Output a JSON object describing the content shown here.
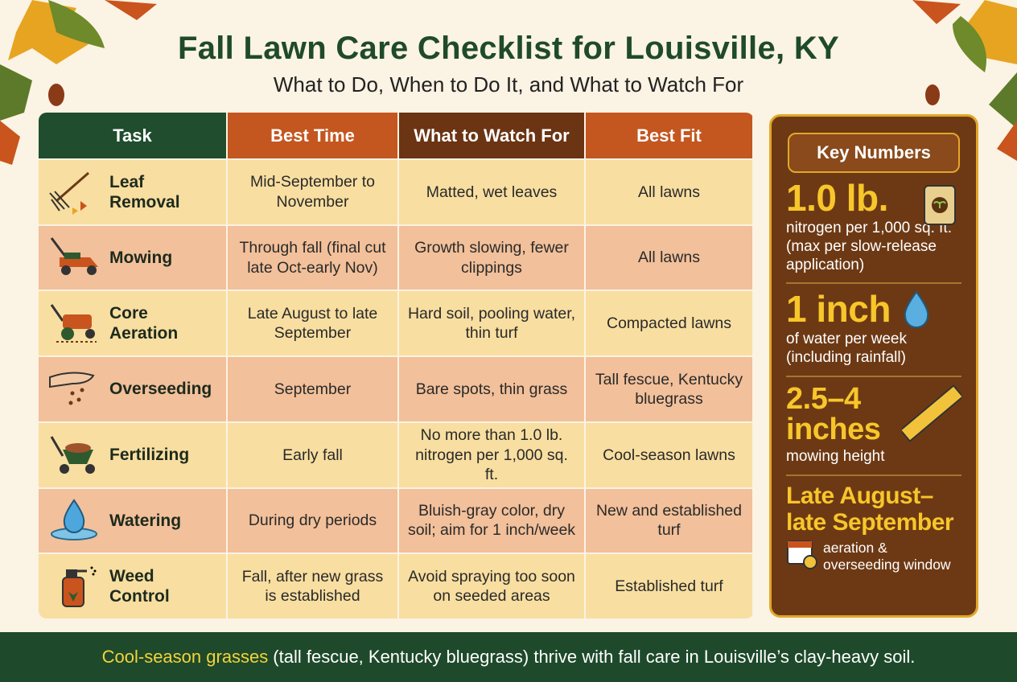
{
  "header": {
    "title": "Fall Lawn Care Checklist for Louisville, KY",
    "subtitle": "What to Do, When to Do It, and What to Watch For"
  },
  "table": {
    "columns": [
      "Task",
      "Best Time",
      "What to Watch For",
      "Best Fit"
    ],
    "rows": [
      [
        "Leaf Removal",
        "Mid-September to November",
        "Matted, wet leaves",
        "All lawns"
      ],
      [
        "Mowing",
        "Through fall (final cut late Oct-early Nov)",
        "Growth slowing, fewer clippings",
        "All lawns"
      ],
      [
        "Core Aeration",
        "Late August to late September",
        "Hard soil, pooling water, thin turf",
        "Compacted lawns"
      ],
      [
        "Overseeding",
        "September",
        "Bare spots, thin grass",
        "Tall fescue, Kentucky bluegrass"
      ],
      [
        "Fertilizing",
        "Early fall",
        "No more than 1.0 lb. nitrogen per 1,000 sq. ft.",
        "Cool-season lawns"
      ],
      [
        "Watering",
        "During dry periods",
        "Bluish-gray color, dry soil; aim for 1 inch/week",
        "New and established turf"
      ],
      [
        "Weed Control",
        "Fall, after new grass is established",
        "Avoid spraying too soon on seeded areas",
        "Established turf"
      ]
    ]
  },
  "key_numbers": {
    "title": "Key Numbers",
    "items": [
      {
        "value": "1.0 lb.",
        "description": "nitrogen per 1,000 sq. ft. (max per slow-release application)"
      },
      {
        "value": "1 inch",
        "description": "of water per week (including rainfall)"
      },
      {
        "value": "2.5–4 inches",
        "description": "mowing height"
      },
      {
        "value": "Late August–late September",
        "description": "aeration & overseeding window"
      }
    ]
  },
  "footer": {
    "highlight": "Cool-season grasses",
    "text": "(tall fescue, Kentucky bluegrass) thrive with fall care in Louisville’s clay-heavy soil."
  }
}
